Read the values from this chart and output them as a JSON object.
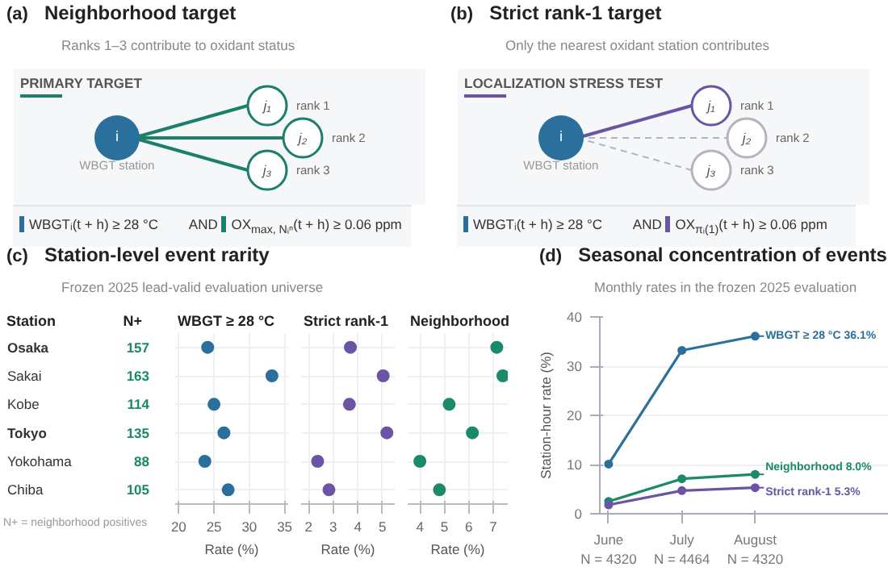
{
  "chart_data": [
    {
      "type": "other",
      "title": "Neighborhood target",
      "subtitle": "Ranks 1–3 contribute to oxidant status",
      "colors": [
        "#1b7f6b",
        "#1b7f6b",
        "#1b7f6b"
      ],
      "annotations": [
        "(a)",
        "PRIMARY TARGET",
        "i",
        "WBGT station",
        "j₁",
        "j₂",
        "j₃",
        "rank 1",
        "rank 2",
        "rank 3",
        "WBGTᵢ(t + h) ≥ 28 °C",
        "AND",
        "OX$_{max, Nᵢⁿ}$(t + h) ≥ 0.06 ppm"
      ]
    },
    {
      "type": "other",
      "title": "Strict rank-1 target",
      "subtitle": "Only the nearest oxidant station contributes",
      "colors": [
        "#6a55a5",
        "#b4b4bc",
        "#b4b4bc"
      ],
      "annotations": [
        "(b)",
        "LOCALIZATION STRESS TEST",
        "i",
        "WBGT station",
        "j₁",
        "j₂",
        "j₃",
        "rank 1",
        "rank 2",
        "rank 3",
        "WBGTᵢ(t + h) ≥ 28 °C",
        "AND",
        "OX$_{πᵢ(1)}$(t + h) ≥ 0.06 ppm"
      ]
    },
    {
      "type": "other",
      "title": "Station-level event rarity",
      "subtitle": "Frozen 2025 lead-valid evaluation universe",
      "categories": [
        "Osaka",
        "Sakai",
        "Kobe",
        "Tokyo",
        "Yokohama",
        "Chiba"
      ],
      "series": [
        {
          "color": "#1b8a6b",
          "values": [
            157,
            163,
            114,
            135,
            88,
            105
          ]
        }
      ],
      "data_labels": true,
      "annotations": [
        "(c)",
        "Station",
        "N+",
        "N+ = neighborhood positives"
      ]
    },
    {
      "type": "scatter",
      "title": "WBGT ≥ 28 °C",
      "xlabel": "Rate (%)",
      "orientation": "horizontal",
      "series": [
        {
          "color": "#2b6f9c",
          "values": [
            24.1,
            33.2,
            25.0,
            26.4,
            23.7,
            27.0
          ]
        }
      ],
      "xlim": [
        19.5,
        35.5
      ],
      "xticks": [
        20,
        25,
        30,
        35
      ],
      "grid": true,
      "tick_labels": "x",
      "marker": "circle"
    },
    {
      "type": "scatter",
      "title": "Strict rank-1",
      "xlabel": "Rate (%)",
      "orientation": "horizontal",
      "series": [
        {
          "color": "#6a55a5",
          "values": [
            3.7,
            5.03,
            3.66,
            5.18,
            2.37,
            2.83
          ]
        }
      ],
      "xlim": [
        1.7,
        5.5
      ],
      "xticks": [
        2,
        3,
        4,
        5
      ],
      "grid": true,
      "tick_labels": "x",
      "marker": "circle"
    },
    {
      "type": "scatter",
      "title": "Neighborhood",
      "xlabel": "Rate (%)",
      "orientation": "horizontal",
      "series": [
        {
          "color": "#1b8a6b",
          "values": [
            7.15,
            7.4,
            5.2,
            6.15,
            4.0,
            4.8
          ]
        }
      ],
      "xlim": [
        3.5,
        7.6
      ],
      "xticks": [
        4,
        5,
        6,
        7
      ],
      "grid": true,
      "tick_labels": "x",
      "marker": "circle"
    },
    {
      "type": "line",
      "title": "Seasonal concentration of events",
      "subtitle": "Monthly rates in the frozen 2025 evaluation",
      "ylabel": "Station-hour rate (%)",
      "categories": [
        "June\nN = 4320",
        "July\nN = 4464",
        "August\nN = 4320"
      ],
      "ylim": [
        0,
        40
      ],
      "yticks": [
        0,
        10,
        20,
        30,
        40
      ],
      "grid": "y",
      "marker": "circle",
      "line_style": "solid",
      "series": [
        {
          "color": "#2b6f9c",
          "values": [
            10.1,
            33.2,
            36.1
          ],
          "value_labels": [
            null,
            null,
            "WBGT ≥ 28 °C  36.1%"
          ]
        },
        {
          "color": "#1b8a6b",
          "values": [
            2.5,
            7.1,
            8.0
          ],
          "value_labels": [
            null,
            null,
            "Neighborhood  8.0%"
          ]
        },
        {
          "color": "#6a55a5",
          "values": [
            1.8,
            4.7,
            5.3
          ],
          "value_labels": [
            null,
            null,
            "Strict rank-1  5.3%"
          ]
        }
      ],
      "annotations": [
        "(d)"
      ]
    }
  ]
}
